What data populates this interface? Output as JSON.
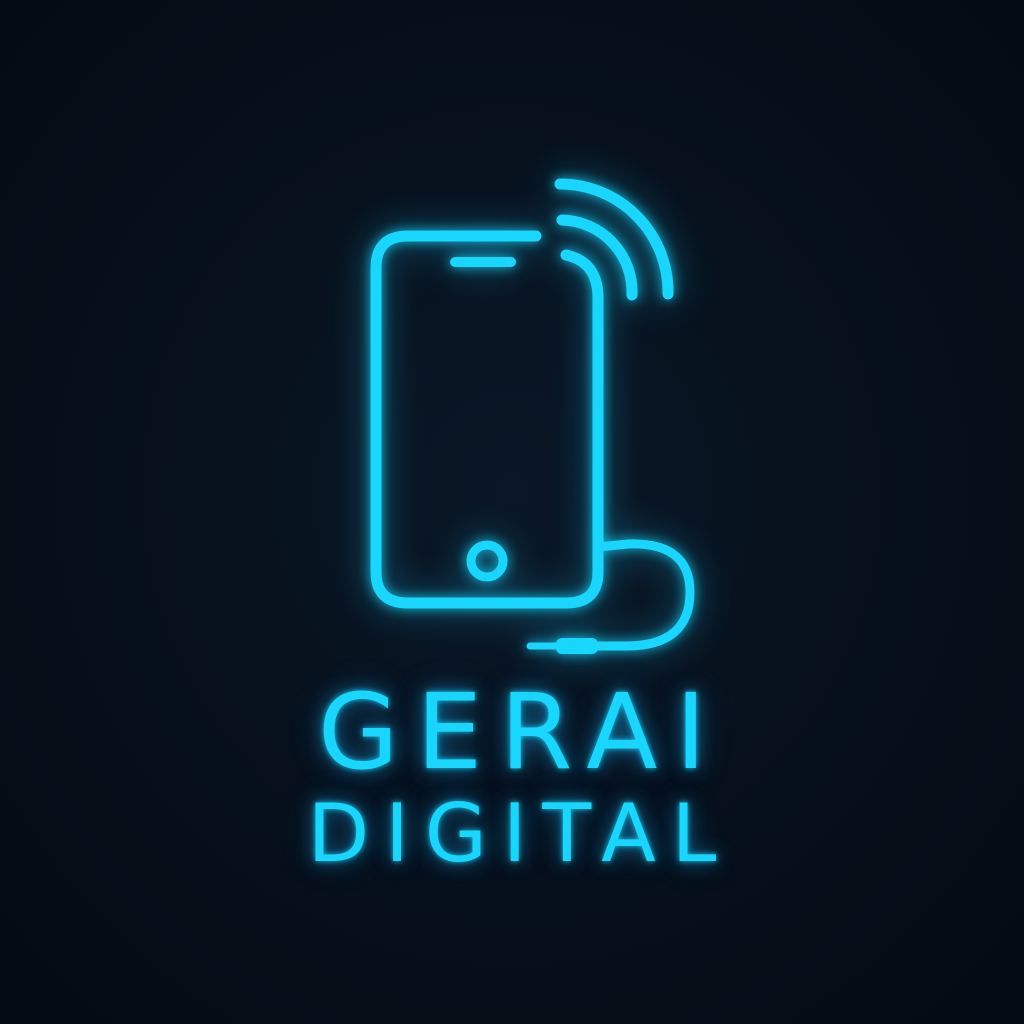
{
  "logo": {
    "brand_name_line1": "GERAI",
    "brand_name_line2": "DIGITAL",
    "accent_color": "#19d6ff",
    "background_color": "#050d18",
    "icons": [
      "smartphone-icon",
      "signal-waves-icon",
      "charging-cable-icon"
    ]
  }
}
